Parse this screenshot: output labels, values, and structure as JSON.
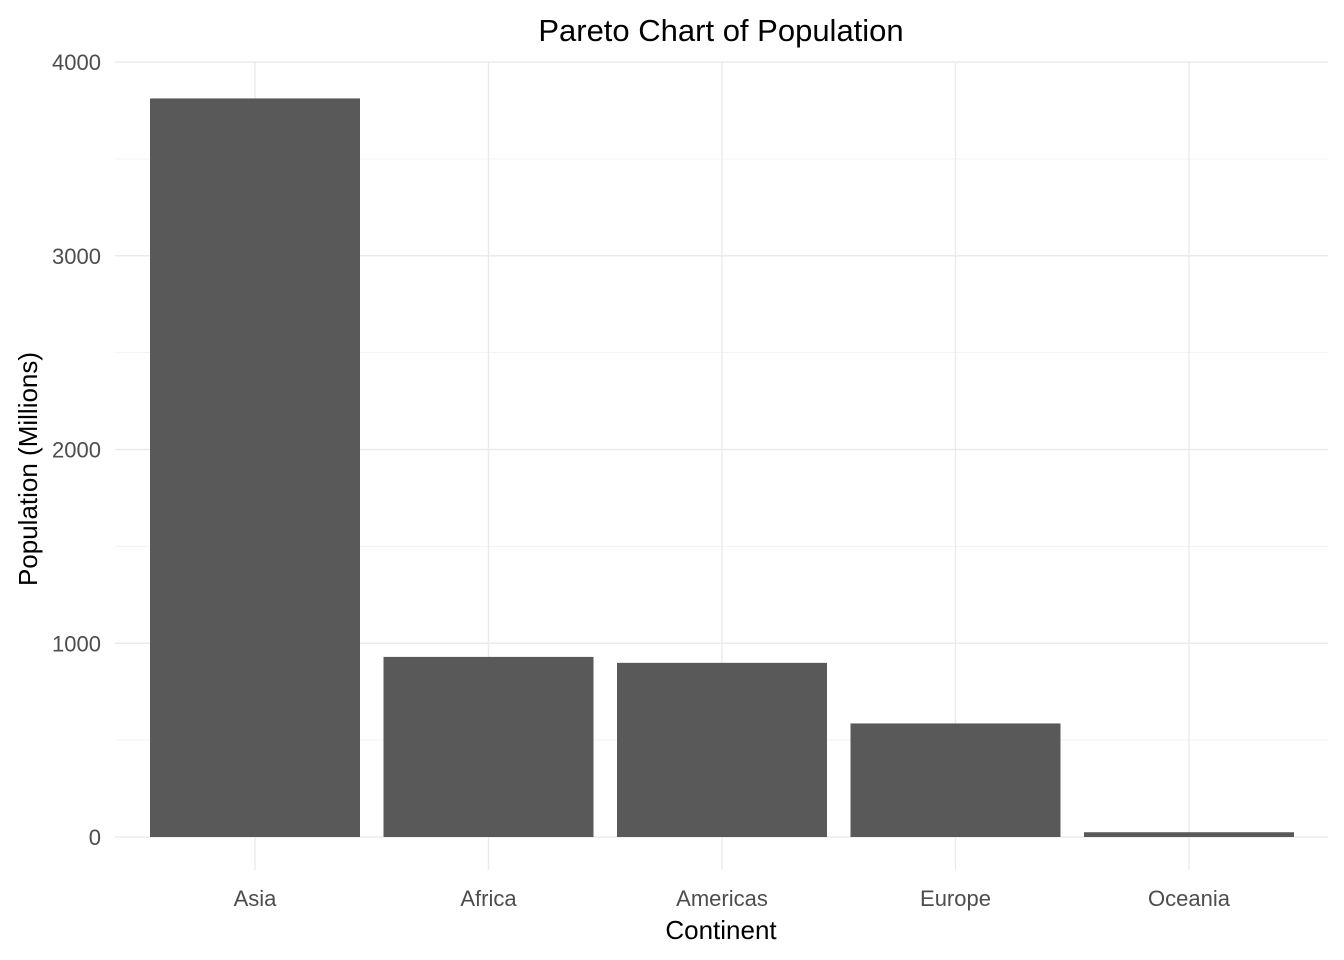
{
  "chart_data": {
    "type": "bar",
    "title": "Pareto Chart of Population",
    "xlabel": "Continent",
    "ylabel": "Population (Millions)",
    "categories": [
      "Asia",
      "Africa",
      "Americas",
      "Europe",
      "Oceania"
    ],
    "values": [
      3811.95,
      929.54,
      898.87,
      586.1,
      24.55
    ],
    "ylim": [
      0,
      4000
    ],
    "yticks": [
      0,
      1000,
      2000,
      3000,
      4000
    ],
    "ytick_labels": [
      "0",
      "1000",
      "2000",
      "3000",
      "4000"
    ],
    "grid": true,
    "legend": "none",
    "colors": {
      "bar": "#595959",
      "grid_major": "#ebebeb",
      "grid_minor": "#f3f3f3",
      "tick_text": "#4d4d4d",
      "title_text": "#000000"
    }
  }
}
